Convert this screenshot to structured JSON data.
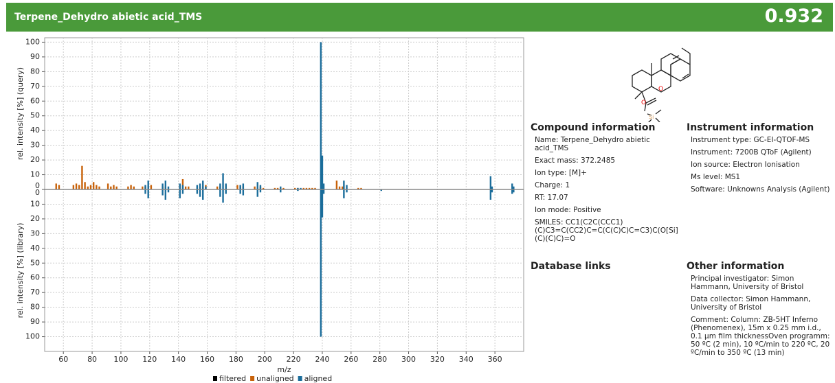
{
  "header": {
    "title": "Terpene_Dehydro abietic acid_TMS",
    "score": "0.932"
  },
  "chart_data": {
    "type": "mirror",
    "xlabel": "m/z",
    "ylabel": "rel. intensity [%] (query)",
    "library_ylabel": "rel. intensity [%] (library)",
    "xlim": [
      47,
      380
    ],
    "xticks": [
      60,
      80,
      100,
      120,
      140,
      160,
      180,
      200,
      220,
      240,
      260,
      280,
      300,
      320,
      340,
      360
    ],
    "ylim": [
      0,
      103
    ],
    "yticks": [
      0,
      10,
      20,
      30,
      40,
      50,
      60,
      70,
      80,
      90,
      100
    ],
    "library_ylim": [
      0,
      110
    ],
    "library_yticks": [
      0,
      10,
      20,
      30,
      40,
      50,
      60,
      70,
      80,
      90,
      100
    ],
    "grid": true,
    "series": [
      {
        "name": "filtered",
        "color": "#000000"
      },
      {
        "name": "unaligned",
        "color": "#c8620a",
        "query_x": [
          55,
          57,
          67,
          69,
          71,
          73,
          75,
          77,
          79,
          81,
          83,
          85,
          91,
          93,
          95,
          97,
          105,
          107,
          109,
          115,
          117,
          119,
          121,
          129,
          131,
          141,
          143,
          145,
          147,
          155,
          157,
          159,
          167,
          169,
          173,
          181,
          183,
          185,
          193,
          195,
          197,
          199,
          207,
          209,
          211,
          213,
          221,
          223,
          227,
          229,
          231,
          233,
          235,
          250,
          252,
          254,
          265,
          267
        ],
        "query_values": [
          4,
          3,
          3,
          4,
          3,
          16,
          5,
          2,
          3,
          5,
          3,
          2,
          4,
          2,
          3,
          2,
          2,
          3,
          2,
          2,
          2,
          2,
          3,
          2,
          2,
          3,
          7,
          2,
          2,
          2,
          2,
          3,
          2,
          2,
          3,
          3,
          2,
          2,
          2,
          1,
          2,
          1,
          1,
          1,
          1,
          1,
          1,
          1,
          1,
          1,
          1,
          1,
          1,
          6,
          2,
          2,
          1,
          1
        ]
      },
      {
        "name": "aligned",
        "color": "#1b6d9b",
        "query_x": [
          117,
          119,
          129,
          131,
          133,
          141,
          143,
          153,
          155,
          157,
          159,
          169,
          171,
          173,
          183,
          185,
          195,
          197,
          211,
          223,
          225,
          239,
          240,
          241,
          255,
          257,
          357,
          358,
          372,
          373
        ],
        "query_values": [
          3,
          6,
          4,
          6,
          2,
          4,
          3,
          3,
          4,
          6,
          2,
          4,
          11,
          4,
          3,
          4,
          5,
          3,
          2,
          1,
          1,
          100,
          23,
          4,
          6,
          3,
          9,
          2,
          4,
          2
        ],
        "library_x": [
          117,
          119,
          129,
          131,
          133,
          141,
          143,
          153,
          155,
          157,
          169,
          171,
          173,
          183,
          185,
          195,
          197,
          211,
          223,
          239,
          240,
          241,
          255,
          257,
          281,
          357,
          358,
          372,
          373
        ],
        "library_values": [
          3,
          6,
          4,
          7,
          2,
          6,
          3,
          3,
          5,
          7,
          5,
          9,
          3,
          3,
          4,
          5,
          2,
          2,
          1,
          100,
          19,
          3,
          6,
          2,
          1,
          7,
          2,
          3,
          2
        ]
      }
    ]
  },
  "structure_labels": [
    "O",
    "O",
    "Si"
  ],
  "compound": {
    "heading": "Compound information",
    "items": [
      "Name: Terpene_Dehydro abietic acid_TMS",
      "Exact mass: 372.2485",
      "Ion type: [M]+",
      "Charge: 1",
      "RT: 17.07",
      "Ion mode: Positive",
      "SMILES: CC1(C2C(CCC1)(C)C3=C(CC2)C=C(C(C)C)C=C3)C(O[Si](C)(C)C)=O"
    ]
  },
  "database": {
    "heading": "Database links"
  },
  "instrument": {
    "heading": "Instrument information",
    "items": [
      "Instrument type: GC-EI-QTOF-MS",
      "Instrument: 7200B QToF (Agilent)",
      "Ion source: Electron Ionisation",
      "Ms level: MS1",
      "Software: Unknowns Analysis (Agilent)"
    ]
  },
  "other": {
    "heading": "Other information",
    "items": [
      "Principal investigator: Simon Hammann, University of Bristol",
      "Data collector: Simon Hammann, University of Bristol",
      "Comment: Column: ZB-5HT Inferno (Phenomenex), 15m x 0.25 mm i.d., 0.1 µm film thicknessOven programm: 50 ºC (2 min), 10 ºC/min to 220 ºC, 20 ºC/min to 350 ºC (13 min)"
    ]
  }
}
